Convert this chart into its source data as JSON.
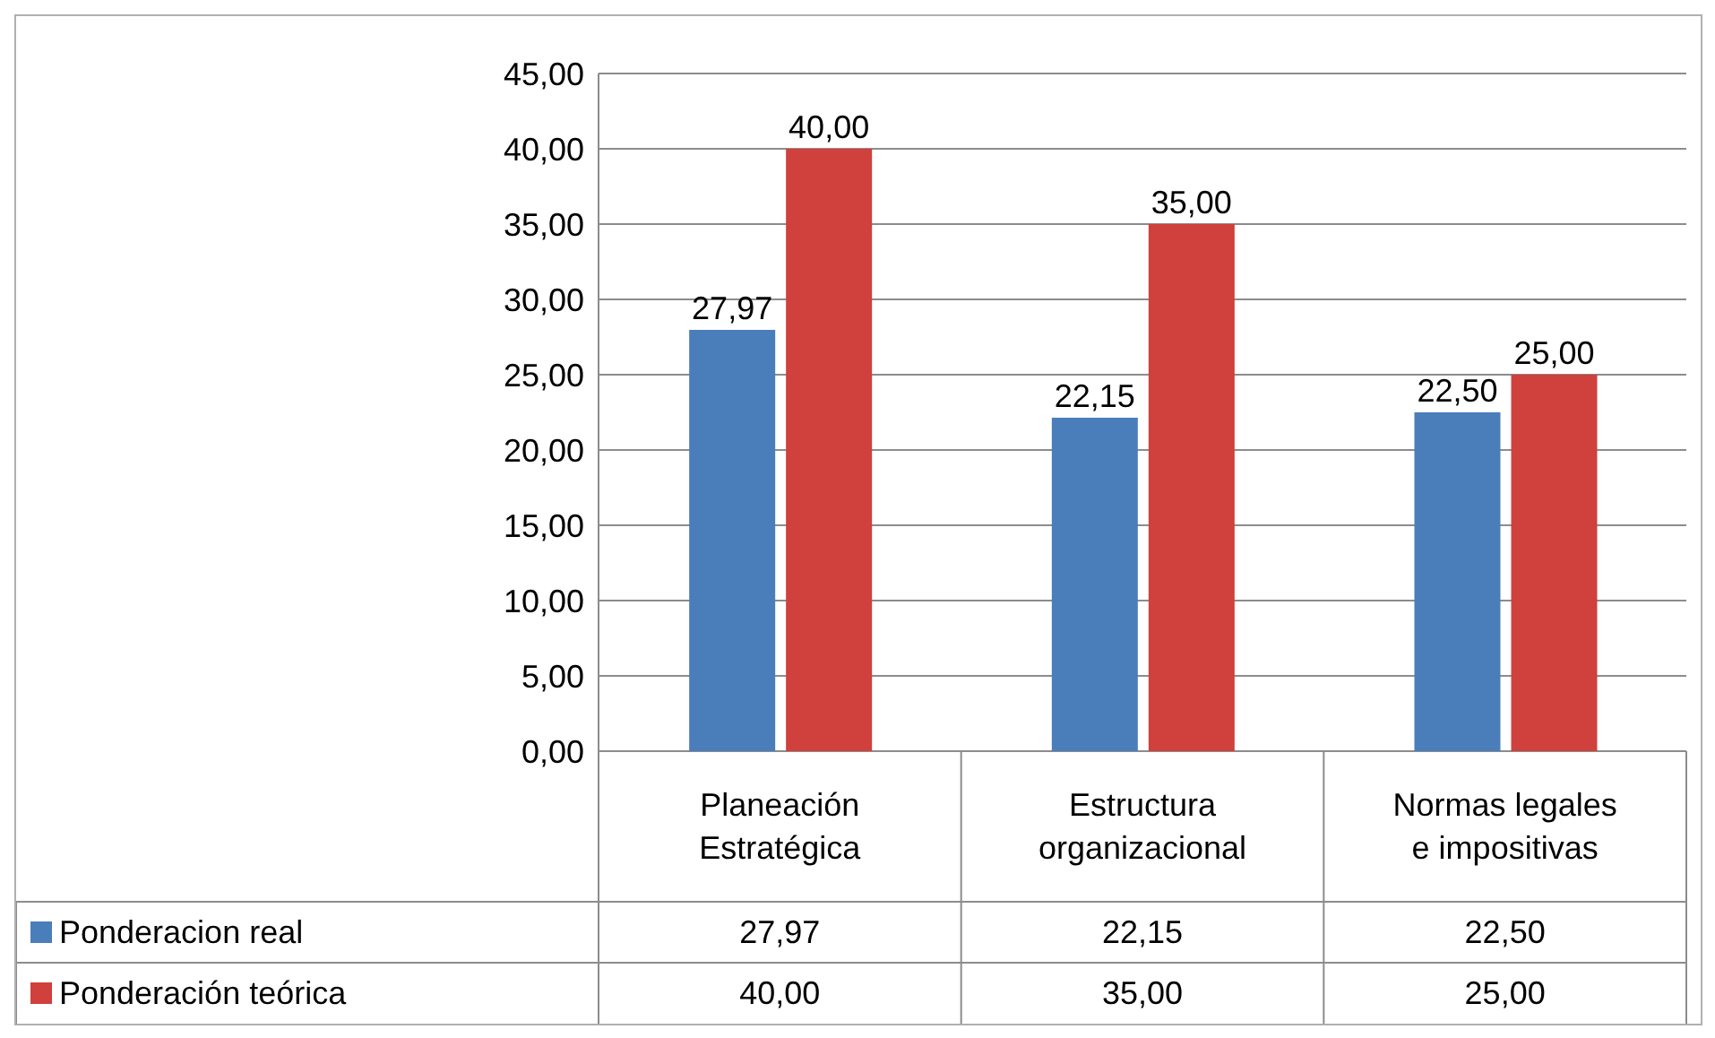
{
  "chart_data": {
    "type": "bar",
    "categories": [
      "Planeación Estratégica",
      "Estructura organizacional",
      "Normas legales e impositivas"
    ],
    "series": [
      {
        "name": "Ponderacion real",
        "color": "#4a7ebb",
        "values": [
          27.97,
          22.15,
          22.5
        ],
        "value_labels": [
          "27,97",
          "22,15",
          "22,50"
        ]
      },
      {
        "name": "Ponderación teórica",
        "color": "#d0403c",
        "values": [
          40,
          35,
          25
        ],
        "value_labels": [
          "40,00",
          "35,00",
          "25,00"
        ]
      }
    ],
    "ylim": [
      0,
      45
    ],
    "yticks": [
      {
        "value": 0,
        "label": "0,00"
      },
      {
        "value": 5,
        "label": "5,00"
      },
      {
        "value": 10,
        "label": "10,00"
      },
      {
        "value": 15,
        "label": "15,00"
      },
      {
        "value": 20,
        "label": "20,00"
      },
      {
        "value": 25,
        "label": "25,00"
      },
      {
        "value": 30,
        "label": "30,00"
      },
      {
        "value": 35,
        "label": "35,00"
      },
      {
        "value": 40,
        "label": "40,00"
      },
      {
        "value": 45,
        "label": "45,00"
      }
    ],
    "grid": "y",
    "legend": "bottom"
  }
}
